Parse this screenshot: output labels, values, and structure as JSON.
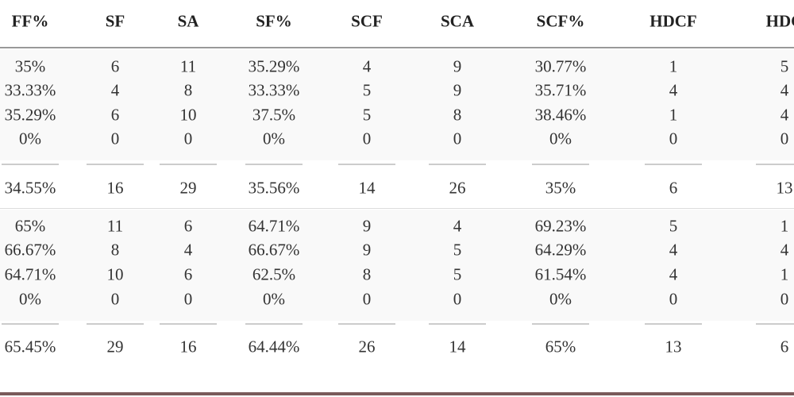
{
  "table": {
    "header": [
      "FF%",
      "SF",
      "SA",
      "SF%",
      "SCF",
      "SCA",
      "SCF%",
      "HDCF",
      "HDC"
    ],
    "rows": [
      [
        "35%",
        "6",
        "11",
        "35.29%",
        "4",
        "9",
        "30.77%",
        "1",
        "5"
      ],
      [
        "33.33%",
        "4",
        "8",
        "33.33%",
        "5",
        "9",
        "35.71%",
        "4",
        "4"
      ],
      [
        "35.29%",
        "6",
        "10",
        "37.5%",
        "5",
        "8",
        "38.46%",
        "1",
        "4"
      ],
      [
        "0%",
        "0",
        "0",
        "0%",
        "0",
        "0",
        "0%",
        "0",
        "0"
      ],
      [
        "34.55%",
        "16",
        "29",
        "35.56%",
        "14",
        "26",
        "35%",
        "6",
        "13"
      ],
      [
        "65%",
        "11",
        "6",
        "64.71%",
        "9",
        "4",
        "69.23%",
        "5",
        "1"
      ],
      [
        "66.67%",
        "8",
        "4",
        "66.67%",
        "9",
        "5",
        "64.29%",
        "4",
        "4"
      ],
      [
        "64.71%",
        "10",
        "6",
        "62.5%",
        "8",
        "5",
        "61.54%",
        "4",
        "1"
      ],
      [
        "0%",
        "0",
        "0",
        "0%",
        "0",
        "0",
        "0%",
        "0",
        "0"
      ],
      [
        "65.45%",
        "29",
        "16",
        "64.44%",
        "26",
        "14",
        "65%",
        "13",
        "6"
      ]
    ]
  }
}
